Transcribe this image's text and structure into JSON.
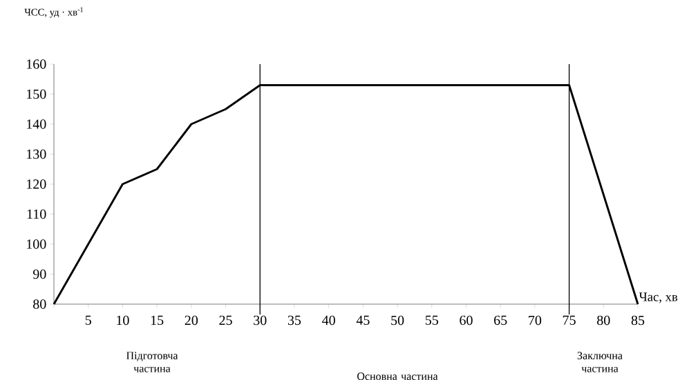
{
  "chart_data": {
    "type": "line",
    "ylabel": "ЧСС, уд · хв$^{-1}$",
    "xlabel": "Час, хв",
    "x": [
      0,
      5,
      10,
      15,
      20,
      25,
      30,
      75,
      85
    ],
    "series": [
      {
        "color": "#000000",
        "values": [
          80,
          100,
          120,
          125,
          140,
          145,
          153,
          153,
          80
        ]
      }
    ],
    "xlim": [
      0,
      85
    ],
    "ylim": [
      80,
      160
    ],
    "xticks": [
      {
        "value": 0,
        "label": null
      },
      5,
      10,
      15,
      20,
      25,
      30,
      35,
      40,
      45,
      50,
      55,
      60,
      65,
      70,
      75,
      80,
      85
    ],
    "yticks": [
      80,
      90,
      100,
      110,
      120,
      130,
      140,
      150,
      160
    ],
    "ref_lines": [
      {
        "axis": "x",
        "value": 30,
        "color": "#000000"
      },
      {
        "axis": "x",
        "value": 75,
        "color": "#000000"
      }
    ],
    "annotations": [
      "Підготовча частина",
      "Основна частина",
      "Заключна частина"
    ]
  }
}
